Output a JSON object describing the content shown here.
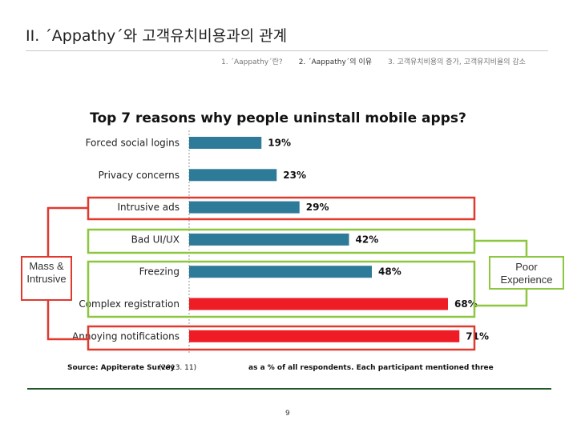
{
  "header": {
    "title": "II. ´Appathy´와 고객유치비용과의 관계",
    "tabs": [
      {
        "label": "1. ´Aappathy´란?"
      },
      {
        "label": "2. ´Aappathy´의 이유"
      },
      {
        "label": "3. 고객유치비용의 증가, 고객유지비율의 감소"
      }
    ]
  },
  "chart_data": {
    "type": "bar",
    "orientation": "horizontal",
    "title": "Top 7 reasons why people uninstall mobile apps?",
    "categories": [
      "Forced social logins",
      "Privacy concerns",
      "Intrusive ads",
      "Bad UI/UX",
      "Freezing",
      "Complex registration",
      "Annoying notifications"
    ],
    "values": [
      19,
      23,
      29,
      42,
      48,
      68,
      71
    ],
    "value_labels": [
      "19%",
      "23%",
      "29%",
      "42%",
      "48%",
      "68%",
      "71%"
    ],
    "bar_colors": [
      "#2e7a99",
      "#2e7a99",
      "#2e7a99",
      "#2e7a99",
      "#2e7a99",
      "#ee1c25",
      "#ee1c25"
    ],
    "xlim": [
      0,
      100
    ],
    "grid": false,
    "source": "Source: Appiterate Survey",
    "source_date": "(2013. 11)",
    "footnote": "as a % of all respondents. Each participant  mentioned three reasons"
  },
  "annotations": {
    "left_label": "Mass & Intrusive",
    "right_label": "Poor Experience",
    "red_group": [
      "Intrusive ads",
      "Annoying notifications"
    ],
    "green_group": [
      "Bad UI/UX",
      "Freezing",
      "Complex registration"
    ],
    "red_color": "#e03a2f",
    "green_color": "#8ec63f"
  },
  "footer": {
    "page_number": "9"
  }
}
